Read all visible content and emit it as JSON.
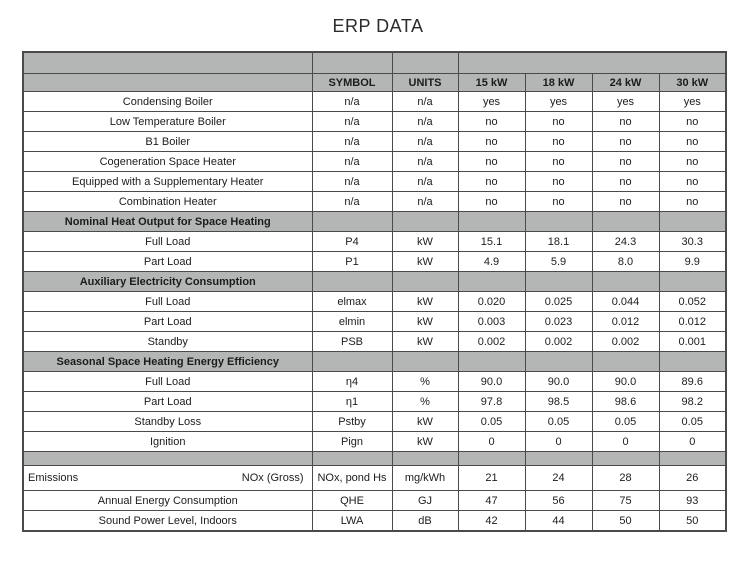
{
  "title": "ERP DATA",
  "colors": {
    "header_bg": "#b3b6b5",
    "border": "#4a4a4a",
    "text": "#1c1c1c"
  },
  "table": {
    "header": [
      "",
      "SYMBOL",
      "UNITS",
      "15 kW",
      "18 kW",
      "24 kW",
      "30 kW"
    ],
    "rows": [
      {
        "type": "data",
        "label": "Condensing Boiler",
        "symbol": "n/a",
        "units": "n/a",
        "values": [
          "yes",
          "yes",
          "yes",
          "yes"
        ]
      },
      {
        "type": "data",
        "label": "Low Temperature Boiler",
        "symbol": "n/a",
        "units": "n/a",
        "values": [
          "no",
          "no",
          "no",
          "no"
        ]
      },
      {
        "type": "data",
        "label": "B1 Boiler",
        "symbol": "n/a",
        "units": "n/a",
        "values": [
          "no",
          "no",
          "no",
          "no"
        ]
      },
      {
        "type": "data",
        "label": "Cogeneration Space Heater",
        "symbol": "n/a",
        "units": "n/a",
        "values": [
          "no",
          "no",
          "no",
          "no"
        ]
      },
      {
        "type": "data",
        "label": "Equipped with a Supplementary Heater",
        "symbol": "n/a",
        "units": "n/a",
        "values": [
          "no",
          "no",
          "no",
          "no"
        ]
      },
      {
        "type": "data",
        "label": "Combination Heater",
        "symbol": "n/a",
        "units": "n/a",
        "values": [
          "no",
          "no",
          "no",
          "no"
        ]
      },
      {
        "type": "section",
        "label": "Nominal Heat Output for Space Heating"
      },
      {
        "type": "data",
        "label": "Full Load",
        "symbol": "P4",
        "units": "kW",
        "values": [
          "15.1",
          "18.1",
          "24.3",
          "30.3"
        ]
      },
      {
        "type": "data",
        "label": "Part Load",
        "symbol": "P1",
        "units": "kW",
        "values": [
          "4.9",
          "5.9",
          "8.0",
          "9.9"
        ]
      },
      {
        "type": "section",
        "label": "Auxiliary Electricity Consumption"
      },
      {
        "type": "data",
        "label": "Full Load",
        "symbol": "elmax",
        "units": "kW",
        "values": [
          "0.020",
          "0.025",
          "0.044",
          "0.052"
        ]
      },
      {
        "type": "data",
        "label": "Part Load",
        "symbol": "elmin",
        "units": "kW",
        "values": [
          "0.003",
          "0.023",
          "0.012",
          "0.012"
        ]
      },
      {
        "type": "data",
        "label": "Standby",
        "symbol": "PSB",
        "units": "kW",
        "values": [
          "0.002",
          "0.002",
          "0.002",
          "0.001"
        ]
      },
      {
        "type": "section",
        "label": "Seasonal Space Heating Energy Efficiency"
      },
      {
        "type": "data",
        "label": "Full Load",
        "symbol": "η4",
        "units": "%",
        "values": [
          "90.0",
          "90.0",
          "90.0",
          "89.6"
        ]
      },
      {
        "type": "data",
        "label": "Part Load",
        "symbol": "η1",
        "units": "%",
        "values": [
          "97.8",
          "98.5",
          "98.6",
          "98.2"
        ]
      },
      {
        "type": "data",
        "label": "Standby Loss",
        "symbol": "Pstby",
        "units": "kW",
        "values": [
          "0.05",
          "0.05",
          "0.05",
          "0.05"
        ]
      },
      {
        "type": "data",
        "label": "Ignition",
        "symbol": "Pign",
        "units": "kW",
        "values": [
          "0",
          "0",
          "0",
          "0"
        ]
      },
      {
        "type": "spacer"
      },
      {
        "type": "data",
        "label": "Emissions",
        "label_right": "NOx (Gross)",
        "symbol": "NOx, pond Hs",
        "units": "mg/kWh",
        "values": [
          "21",
          "24",
          "28",
          "26"
        ]
      },
      {
        "type": "data",
        "label": "Annual Energy Consumption",
        "symbol": "QHE",
        "units": "GJ",
        "values": [
          "47",
          "56",
          "75",
          "93"
        ]
      },
      {
        "type": "data",
        "label": "Sound Power Level, Indoors",
        "symbol": "LWA",
        "units": "dB",
        "values": [
          "42",
          "44",
          "50",
          "50"
        ]
      }
    ]
  }
}
